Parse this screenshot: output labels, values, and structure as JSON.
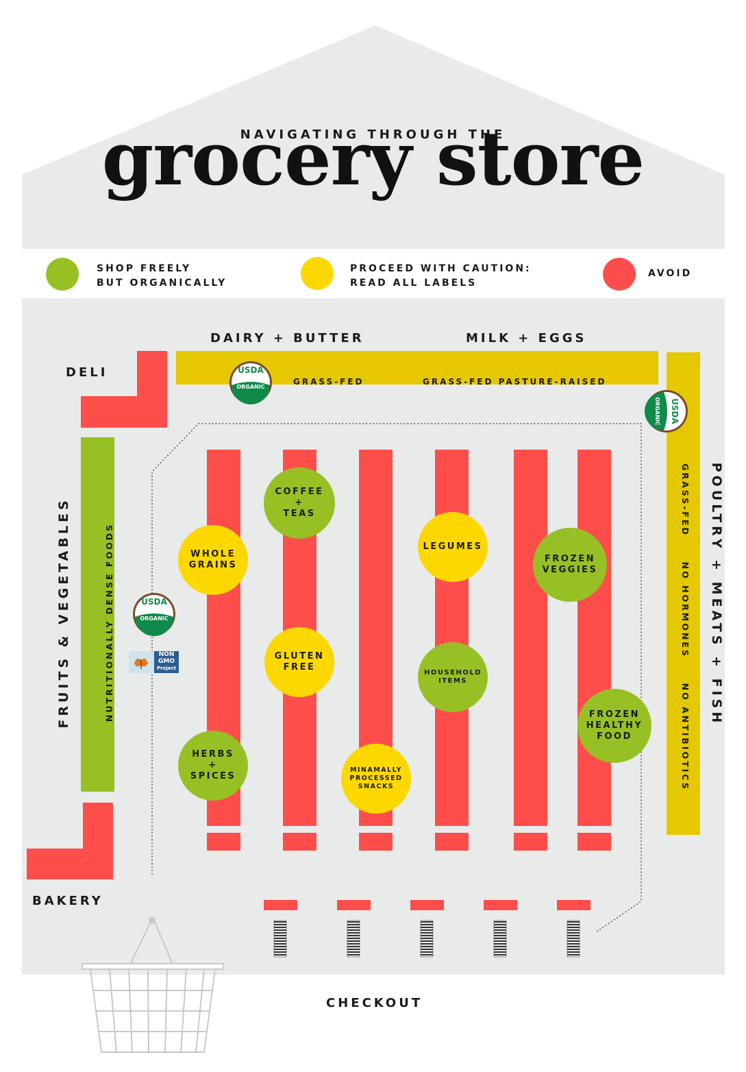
{
  "title": {
    "subtitle": "NAVIGATING THROUGH THE",
    "main": "grocery store"
  },
  "colors": {
    "background": "#e9ebea",
    "green": "#97c024",
    "yellow": "#fcd800",
    "red": "#fd4e4b",
    "mustard": "#e5c800"
  },
  "legend": [
    {
      "color": "green",
      "line1": "SHOP FREELY",
      "line2": "BUT ORGANICALLY"
    },
    {
      "color": "yellow",
      "line1": "PROCEED WITH CAUTION:",
      "line2": "READ ALL LABELS"
    },
    {
      "color": "red",
      "line1": "AVOID",
      "line2": ""
    }
  ],
  "sections": {
    "deli": "DELI",
    "dairy": "DAIRY + BUTTER",
    "milk": "MILK + EGGS",
    "dairy_note1": "GRASS-FED",
    "dairy_note2": "GRASS-FED PASTURE-RAISED",
    "fruits": "FRUITS & VEGETABLES",
    "fruits_note": "NUTRITIONALLY DENSE FOODS",
    "poultry": "POULTRY + MEATS + FISH",
    "poultry_note": "GRASS-FED     NO HORMONES     NO ANTIBIOTICS",
    "bakery": "BAKERY",
    "checkout": "CHECKOUT"
  },
  "badges": {
    "usda_top": "USDA",
    "usda_bottom": "ORGANIC",
    "nongmo_1": "NON",
    "nongmo_2": "GMO",
    "nongmo_3": "Project"
  },
  "aisle_items": [
    {
      "label": "COFFEE\n+\nTEAS",
      "color": "green"
    },
    {
      "label": "WHOLE\nGRAINS",
      "color": "yellow"
    },
    {
      "label": "LEGUMES",
      "color": "yellow"
    },
    {
      "label": "FROZEN\nVEGGIES",
      "color": "green"
    },
    {
      "label": "GLUTEN\nFREE",
      "color": "yellow"
    },
    {
      "label": "HOUSEHOLD\nITEMS",
      "color": "green"
    },
    {
      "label": "FROZEN\nHEALTHY\nFOOD",
      "color": "green"
    },
    {
      "label": "HERBS\n+\nSPICES",
      "color": "green"
    },
    {
      "label": "MINAMALLY\nPROCESSED\nSNACKS",
      "color": "yellow"
    }
  ]
}
